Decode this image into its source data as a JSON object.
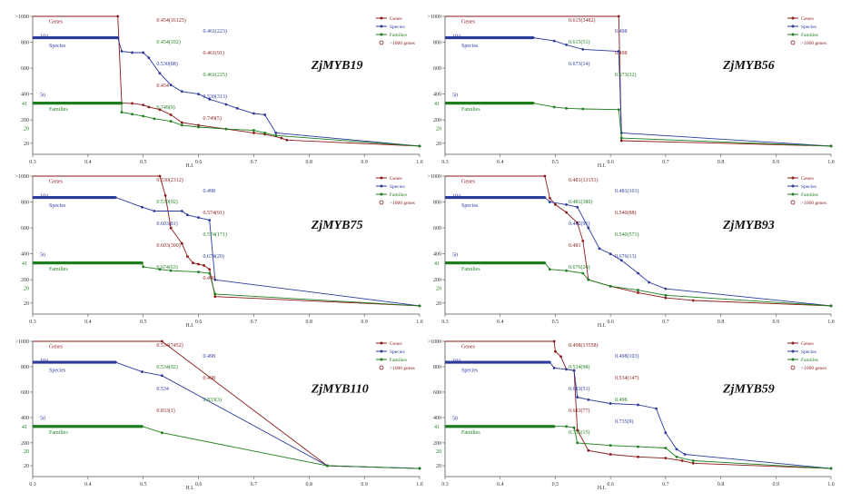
{
  "colors": {
    "genes": "#8b1a1a",
    "species": "#2c3a9c",
    "families": "#1e7d1e",
    "axis": "#555555"
  },
  "legend": [
    "Genes",
    "Species",
    "Families",
    ">1000 genes"
  ],
  "chart_data": [
    {
      "type": "line",
      "title": "ZjMYB19",
      "xlabel": "H.I.",
      "xlim": [
        0.3,
        1.0
      ],
      "xticks": [
        "0.3",
        "0.4",
        "0.5",
        "0.6",
        "0.7",
        "0.8",
        "0.9",
        "1.0"
      ],
      "yticks": [
        ">1000",
        "800",
        "600",
        "400",
        "200",
        "20",
        "41",
        "50",
        "104"
      ],
      "series": [
        {
          "name": "Genes",
          "points": [
            [
              0.3,
              1000
            ],
            [
              0.454,
              1000
            ],
            [
              0.461,
              330
            ],
            [
              0.48,
              328
            ],
            [
              0.5,
              316
            ],
            [
              0.51,
              300
            ],
            [
              0.53,
              280
            ],
            [
              0.55,
              240
            ],
            [
              0.57,
              180
            ],
            [
              0.6,
              160
            ],
            [
              0.65,
              130
            ],
            [
              0.7,
              100
            ],
            [
              0.72,
              90
            ],
            [
              0.75,
              60
            ],
            [
              0.76,
              45
            ],
            [
              1.0,
              15
            ]
          ]
        },
        {
          "name": "Species",
          "points": [
            [
              0.3,
              835
            ],
            [
              0.454,
              835
            ],
            [
              0.461,
              730
            ],
            [
              0.48,
              720
            ],
            [
              0.5,
              720
            ],
            [
              0.51,
              680
            ],
            [
              0.53,
              560
            ],
            [
              0.55,
              470
            ],
            [
              0.57,
              420
            ],
            [
              0.6,
              400
            ],
            [
              0.62,
              360
            ],
            [
              0.65,
              320
            ],
            [
              0.67,
              290
            ],
            [
              0.7,
              250
            ],
            [
              0.72,
              240
            ],
            [
              0.74,
              100
            ],
            [
              1.0,
              15
            ]
          ]
        },
        {
          "name": "Families",
          "points": [
            [
              0.3,
              330
            ],
            [
              0.461,
              330
            ],
            [
              0.461,
              260
            ],
            [
              0.48,
              245
            ],
            [
              0.5,
              230
            ],
            [
              0.52,
              210
            ],
            [
              0.55,
              190
            ],
            [
              0.57,
              160
            ],
            [
              0.6,
              145
            ],
            [
              0.65,
              130
            ],
            [
              0.7,
              120
            ],
            [
              0.72,
              100
            ],
            [
              0.74,
              80
            ],
            [
              1.0,
              15
            ]
          ]
        }
      ],
      "labels": [
        "0.454(16125)",
        "0.461(223)",
        "0.454(102)",
        "0.461(91)",
        "0.530(88)",
        "0.461(225)",
        "0.454",
        "0.530(313)",
        "0.749(9)",
        "0.749(5)"
      ],
      "left_labels": [
        "104",
        "Species",
        "50",
        "41",
        "Families",
        "20",
        "Genes"
      ]
    },
    {
      "type": "line",
      "title": "ZjMYB56",
      "xlabel": "H.I.",
      "xlim": [
        0.3,
        1.0
      ],
      "xticks": [
        "0.3",
        "0.4",
        "0.5",
        "0.6",
        "0.7",
        "0.8",
        "0.9",
        "1.0"
      ],
      "yticks": [
        ">1000",
        "800",
        "600",
        "400",
        "200",
        "20",
        "41",
        "50",
        "104"
      ],
      "series": [
        {
          "name": "Genes",
          "points": [
            [
              0.3,
              1000
            ],
            [
              0.615,
              1000
            ],
            [
              0.62,
              40
            ],
            [
              1.0,
              15
            ]
          ]
        },
        {
          "name": "Species",
          "points": [
            [
              0.3,
              835
            ],
            [
              0.46,
              835
            ],
            [
              0.498,
              810
            ],
            [
              0.52,
              780
            ],
            [
              0.55,
              745
            ],
            [
              0.615,
              730
            ],
            [
              0.62,
              100
            ],
            [
              1.0,
              15
            ]
          ]
        },
        {
          "name": "Families",
          "points": [
            [
              0.3,
              330
            ],
            [
              0.46,
              330
            ],
            [
              0.498,
              300
            ],
            [
              0.52,
              290
            ],
            [
              0.55,
              285
            ],
            [
              0.615,
              280
            ],
            [
              0.62,
              60
            ],
            [
              1.0,
              15
            ]
          ]
        }
      ],
      "labels": [
        "0.615(3482)",
        "0.498",
        "0.615(51)",
        "0.498",
        "0.673(14)",
        "0.673(32)"
      ],
      "left_labels": [
        "104",
        "Species",
        "50",
        "41",
        "Families",
        "20",
        "Genes"
      ]
    },
    {
      "type": "line",
      "title": "ZjMYB75",
      "xlabel": "H.I.",
      "xlim": [
        0.3,
        1.0
      ],
      "xticks": [
        "0.3",
        "0.4",
        "0.5",
        "0.6",
        "0.7",
        "0.8",
        "0.9",
        "1.0"
      ],
      "yticks": [
        ">1000",
        "800",
        "600",
        "400",
        "200",
        "20",
        "41",
        "50",
        "104"
      ],
      "series": [
        {
          "name": "Genes",
          "points": [
            [
              0.3,
              1000
            ],
            [
              0.53,
              1000
            ],
            [
              0.54,
              850
            ],
            [
              0.55,
              600
            ],
            [
              0.57,
              480
            ],
            [
              0.58,
              380
            ],
            [
              0.59,
              330
            ],
            [
              0.6,
              320
            ],
            [
              0.61,
              310
            ],
            [
              0.62,
              280
            ],
            [
              0.63,
              70
            ],
            [
              1.0,
              15
            ]
          ]
        },
        {
          "name": "Species",
          "points": [
            [
              0.3,
              835
            ],
            [
              0.45,
              835
            ],
            [
              0.498,
              760
            ],
            [
              0.52,
              730
            ],
            [
              0.57,
              730
            ],
            [
              0.58,
              700
            ],
            [
              0.6,
              680
            ],
            [
              0.62,
              660
            ],
            [
              0.63,
              200
            ],
            [
              1.0,
              15
            ]
          ]
        },
        {
          "name": "Families",
          "points": [
            [
              0.3,
              330
            ],
            [
              0.498,
              330
            ],
            [
              0.5,
              300
            ],
            [
              0.53,
              280
            ],
            [
              0.55,
              270
            ],
            [
              0.6,
              260
            ],
            [
              0.62,
              250
            ],
            [
              0.63,
              90
            ],
            [
              1.0,
              15
            ]
          ]
        }
      ],
      "labels": [
        "0.530(2312)",
        "0.498",
        "0.530(92)",
        "0.574(91)",
        "0.603(81)",
        "0.574(171)",
        "0.603(300)",
        "0.674(20)",
        "0.674(63)",
        "0.498"
      ],
      "left_labels": [
        "104",
        "Species",
        "50",
        "41",
        "Families",
        "20",
        "Genes"
      ]
    },
    {
      "type": "line",
      "title": "ZjMYB93",
      "xlabel": "H.I.",
      "xlim": [
        0.3,
        1.0
      ],
      "xticks": [
        "0.3",
        "0.4",
        "0.5",
        "0.6",
        "0.7",
        "0.8",
        "0.9",
        "1.0"
      ],
      "yticks": [
        ">1000",
        "800",
        "600",
        "400",
        "200",
        "20",
        "41",
        "50",
        "104"
      ],
      "series": [
        {
          "name": "Genes",
          "points": [
            [
              0.3,
              1000
            ],
            [
              0.481,
              1000
            ],
            [
              0.49,
              830
            ],
            [
              0.5,
              780
            ],
            [
              0.52,
              720
            ],
            [
              0.54,
              640
            ],
            [
              0.55,
              500
            ],
            [
              0.56,
              200
            ],
            [
              0.6,
              150
            ],
            [
              0.65,
              100
            ],
            [
              0.7,
              60
            ],
            [
              0.75,
              40
            ],
            [
              1.0,
              15
            ]
          ]
        },
        {
          "name": "Species",
          "points": [
            [
              0.3,
              835
            ],
            [
              0.481,
              835
            ],
            [
              0.49,
              800
            ],
            [
              0.52,
              780
            ],
            [
              0.54,
              760
            ],
            [
              0.56,
              600
            ],
            [
              0.58,
              440
            ],
            [
              0.6,
              400
            ],
            [
              0.62,
              350
            ],
            [
              0.65,
              250
            ],
            [
              0.67,
              180
            ],
            [
              0.7,
              130
            ],
            [
              1.0,
              15
            ]
          ]
        },
        {
          "name": "Families",
          "points": [
            [
              0.3,
              330
            ],
            [
              0.481,
              330
            ],
            [
              0.49,
              280
            ],
            [
              0.52,
              270
            ],
            [
              0.55,
              250
            ],
            [
              0.56,
              200
            ],
            [
              0.6,
              150
            ],
            [
              0.65,
              120
            ],
            [
              0.7,
              80
            ],
            [
              1.0,
              15
            ]
          ]
        }
      ],
      "labels": [
        "0.481(13151)",
        "0.481(101)",
        "0.481(380)",
        "0.540(88)",
        "0.482(91)",
        "0.540(571)",
        "0.481",
        "0.676(13)",
        "0.676(24)"
      ],
      "left_labels": [
        "104",
        "Species",
        "50",
        "41",
        "Families",
        "20",
        "Genes"
      ]
    },
    {
      "type": "line",
      "title": "ZjMYB110",
      "xlabel": "H.I.",
      "xlim": [
        0.3,
        1.0
      ],
      "xticks": [
        "0.3",
        "0.4",
        "0.5",
        "0.6",
        "0.7",
        "0.8",
        "0.9",
        "1.0"
      ],
      "yticks": [
        ">1000",
        "800",
        "600",
        "400",
        "200",
        "20",
        "41",
        "50",
        "104"
      ],
      "series": [
        {
          "name": "Genes",
          "points": [
            [
              0.3,
              1000
            ],
            [
              0.534,
              1000
            ],
            [
              0.833,
              20
            ],
            [
              1.0,
              15
            ]
          ]
        },
        {
          "name": "Species",
          "points": [
            [
              0.3,
              835
            ],
            [
              0.45,
              835
            ],
            [
              0.498,
              760
            ],
            [
              0.534,
              730
            ],
            [
              0.833,
              20
            ],
            [
              1.0,
              15
            ]
          ]
        },
        {
          "name": "Families",
          "points": [
            [
              0.3,
              330
            ],
            [
              0.498,
              330
            ],
            [
              0.534,
              280
            ],
            [
              0.833,
              20
            ],
            [
              1.0,
              15
            ]
          ]
        }
      ],
      "labels": [
        "0.534(7452)",
        "0.498",
        "0.534(92)",
        "0.498",
        "0.534",
        "0.833(3)",
        "0.833(1)"
      ],
      "left_labels": [
        "104",
        "Species",
        "50",
        "41",
        "Families",
        "20",
        "Genes"
      ]
    },
    {
      "type": "line",
      "title": "ZjMYB59",
      "xlabel": "H.I.",
      "xlim": [
        0.3,
        1.0
      ],
      "xticks": [
        "0.3",
        "0.4",
        "0.5",
        "0.6",
        "0.7",
        "0.8",
        "0.9",
        "1.0"
      ],
      "yticks": [
        ">1000",
        "800",
        "600",
        "400",
        "200",
        "20",
        "41",
        "50",
        "104"
      ],
      "series": [
        {
          "name": "Genes",
          "points": [
            [
              0.3,
              1000
            ],
            [
              0.498,
              1000
            ],
            [
              0.5,
              920
            ],
            [
              0.51,
              880
            ],
            [
              0.52,
              780
            ],
            [
              0.534,
              770
            ],
            [
              0.54,
              300
            ],
            [
              0.56,
              140
            ],
            [
              0.6,
              110
            ],
            [
              0.65,
              90
            ],
            [
              0.7,
              80
            ],
            [
              0.73,
              60
            ],
            [
              0.75,
              40
            ],
            [
              1.0,
              15
            ]
          ]
        },
        {
          "name": "Species",
          "points": [
            [
              0.3,
              835
            ],
            [
              0.49,
              835
            ],
            [
              0.498,
              790
            ],
            [
              0.52,
              780
            ],
            [
              0.534,
              770
            ],
            [
              0.54,
              560
            ],
            [
              0.56,
              540
            ],
            [
              0.6,
              510
            ],
            [
              0.65,
              500
            ],
            [
              0.683,
              470
            ],
            [
              0.7,
              280
            ],
            [
              0.72,
              150
            ],
            [
              0.735,
              110
            ],
            [
              1.0,
              15
            ]
          ]
        },
        {
          "name": "Families",
          "points": [
            [
              0.3,
              330
            ],
            [
              0.498,
              330
            ],
            [
              0.52,
              330
            ],
            [
              0.534,
              320
            ],
            [
              0.54,
              200
            ],
            [
              0.6,
              180
            ],
            [
              0.65,
              170
            ],
            [
              0.7,
              160
            ],
            [
              0.72,
              90
            ],
            [
              0.75,
              60
            ],
            [
              1.0,
              15
            ]
          ]
        }
      ],
      "labels": [
        "0.498(13558)",
        "0.498(103)",
        "0.534(98)",
        "0.534(147)",
        "0.683(51)",
        "0.498",
        "0.683(77)",
        "0.735(9)",
        "0.735(15)"
      ],
      "left_labels": [
        "104",
        "Species",
        "50",
        "41",
        "Families",
        "20",
        "Genes"
      ]
    }
  ]
}
